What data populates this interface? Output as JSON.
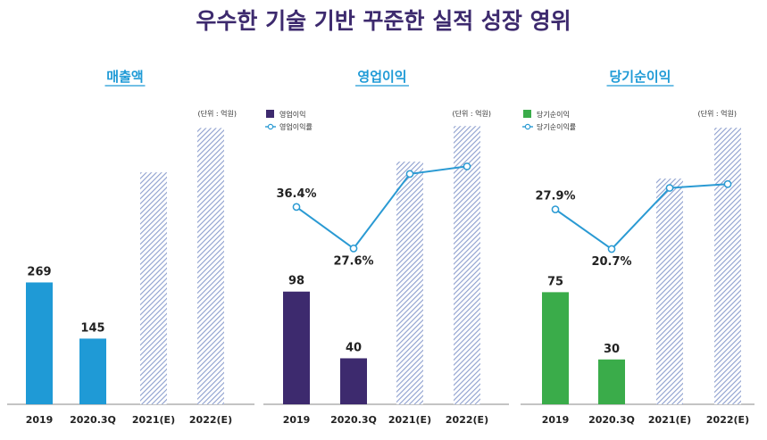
{
  "title": "우수한 기술 기반 꾸준한 실적 성장 영위",
  "chart_data": [
    {
      "type": "bar",
      "title": "매출액",
      "unit": "(단위 : 억원)",
      "categories": [
        "2019",
        "2020.3Q",
        "2021(E)",
        "2022(E)"
      ],
      "series": [
        {
          "values": [
            269,
            145,
            512,
            610
          ],
          "value_labels": [
            "269",
            "145",
            "",
            ""
          ]
        }
      ],
      "estimated": [
        false,
        false,
        true,
        true
      ],
      "colors": {
        "bar": "#1f9ad6",
        "estimate": "#8d9fce"
      },
      "ylim": [
        0,
        660
      ]
    },
    {
      "type": "bar",
      "title": "영업이익",
      "unit": "(단위 : 억원)",
      "categories": [
        "2019",
        "2020.3Q",
        "2021(E)",
        "2022(E)"
      ],
      "series": [
        {
          "name": "영업이익",
          "values": [
            98,
            40,
            211,
            242
          ],
          "value_labels": [
            "98",
            "40",
            "",
            ""
          ]
        },
        {
          "name": "영업이익률",
          "type": "line",
          "values": [
            36.4,
            27.6,
            43.4,
            45.0
          ],
          "value_labels": [
            "36.4%",
            "27.6%",
            "",
            ""
          ]
        }
      ],
      "estimated": [
        false,
        false,
        true,
        true
      ],
      "colors": {
        "bar": "#3d2a6e",
        "estimate": "#8d9fce",
        "line": "#2a9ad3"
      },
      "ylim": [
        0,
        260
      ]
    },
    {
      "type": "bar",
      "title": "당기순이익",
      "unit": "(단위 : 억원)",
      "categories": [
        "2019",
        "2020.3Q",
        "2021(E)",
        "2022(E)"
      ],
      "series": [
        {
          "name": "당기순이익",
          "values": [
            75,
            30,
            151,
            185
          ],
          "value_labels": [
            "75",
            "30",
            "",
            ""
          ]
        },
        {
          "name": "당기순이익률",
          "type": "line",
          "values": [
            27.9,
            20.7,
            31.8,
            32.5
          ],
          "value_labels": [
            "27.9%",
            "20.7%",
            "",
            ""
          ]
        }
      ],
      "estimated": [
        false,
        false,
        true,
        true
      ],
      "colors": {
        "bar": "#3aac4a",
        "estimate": "#8d9fce",
        "line": "#2a9ad3"
      },
      "ylim": [
        0,
        200
      ]
    }
  ]
}
